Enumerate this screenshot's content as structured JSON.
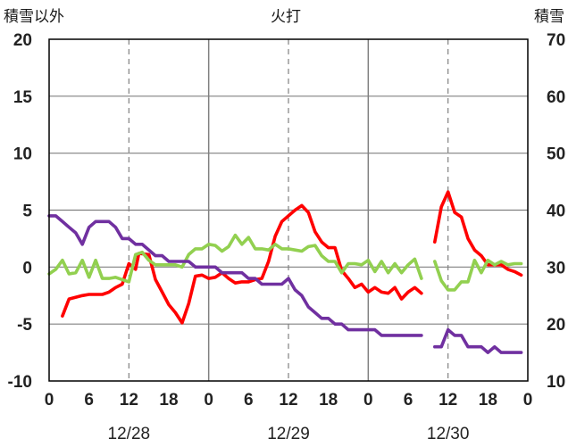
{
  "chart_data": {
    "type": "line",
    "title": "火打",
    "left_axis": {
      "label": "積雪以外",
      "ylim": [
        -10,
        20
      ],
      "ticks": [
        -10,
        -5,
        0,
        5,
        10,
        15,
        20
      ]
    },
    "right_axis": {
      "label": "積雪",
      "ylim": [
        10,
        70
      ],
      "ticks": [
        10,
        20,
        30,
        40,
        50,
        60,
        70
      ]
    },
    "x_axis": {
      "hour_ticks": [
        "0",
        "6",
        "12",
        "18",
        "0",
        "6",
        "12",
        "18",
        "0",
        "6",
        "12",
        "18",
        "0"
      ],
      "date_labels": [
        "12/28",
        "12/29",
        "12/30"
      ],
      "day_boundaries_hour": [
        0,
        24,
        48,
        72
      ],
      "dashed_noon_hours": [
        12,
        36,
        60
      ]
    },
    "grid": true,
    "colors": {
      "red": "#ff0000",
      "green": "#92d050",
      "purple": "#7030a0",
      "axis": "#000000",
      "grid": "#808080"
    },
    "series": [
      {
        "color": "#ff0000",
        "axis": "left",
        "unit": "left",
        "segments": [
          [
            [
              2,
              -4.3
            ],
            [
              3,
              -2.8
            ],
            [
              5,
              -2.5
            ],
            [
              6,
              -2.4
            ],
            [
              8,
              -2.4
            ],
            [
              9,
              -2.2
            ],
            [
              10,
              -1.8
            ],
            [
              11,
              -1.5
            ],
            [
              12,
              0.3
            ],
            [
              13,
              -0.2
            ],
            [
              13.5,
              1.2
            ],
            [
              15,
              1.1
            ],
            [
              16,
              -1.1
            ],
            [
              17,
              -2.2
            ],
            [
              18,
              -3.3
            ],
            [
              19,
              -4.0
            ],
            [
              20,
              -4.9
            ],
            [
              21,
              -3.2
            ],
            [
              22,
              -0.8
            ],
            [
              23,
              -0.7
            ],
            [
              24,
              -1.0
            ],
            [
              25,
              -0.9
            ],
            [
              26,
              -0.5
            ],
            [
              27,
              -1.0
            ],
            [
              28,
              -1.4
            ],
            [
              29,
              -1.3
            ],
            [
              30,
              -1.3
            ],
            [
              31,
              -1.1
            ],
            [
              32,
              -1.0
            ],
            [
              33,
              0.5
            ],
            [
              34,
              2.7
            ],
            [
              35,
              4.0
            ],
            [
              36,
              4.5
            ],
            [
              37,
              5.0
            ],
            [
              38,
              5.4
            ],
            [
              39,
              4.8
            ],
            [
              40,
              3.1
            ],
            [
              41,
              2.2
            ],
            [
              42,
              1.7
            ],
            [
              43,
              1.7
            ],
            [
              44,
              -0.3
            ],
            [
              45,
              -1.0
            ],
            [
              46,
              -1.8
            ],
            [
              47,
              -1.5
            ],
            [
              48,
              -2.2
            ],
            [
              49,
              -1.8
            ],
            [
              50,
              -2.2
            ],
            [
              51,
              -2.3
            ],
            [
              52,
              -1.8
            ],
            [
              53,
              -2.8
            ],
            [
              54,
              -2.2
            ],
            [
              55,
              -1.8
            ],
            [
              56,
              -2.3
            ]
          ],
          [
            [
              58,
              2.2
            ],
            [
              59,
              5.3
            ],
            [
              60,
              6.6
            ],
            [
              61,
              4.8
            ],
            [
              62,
              4.4
            ],
            [
              63,
              2.5
            ],
            [
              64,
              1.5
            ],
            [
              65,
              1.0
            ],
            [
              66,
              0.2
            ],
            [
              67,
              0.2
            ],
            [
              68,
              0.2
            ],
            [
              69,
              -0.2
            ],
            [
              70,
              -0.4
            ],
            [
              71,
              -0.7
            ]
          ]
        ]
      },
      {
        "color": "#92d050",
        "axis": "left",
        "unit": "left",
        "segments": [
          [
            [
              0,
              -0.6
            ],
            [
              1,
              -0.2
            ],
            [
              2,
              0.6
            ],
            [
              3,
              -0.6
            ],
            [
              4,
              -0.5
            ],
            [
              5,
              0.6
            ],
            [
              6,
              -0.9
            ],
            [
              7,
              0.6
            ],
            [
              8,
              -1.0
            ],
            [
              9,
              -1.0
            ],
            [
              10,
              -0.9
            ],
            [
              11,
              -1.1
            ],
            [
              12,
              -1.3
            ],
            [
              13,
              1.1
            ],
            [
              14,
              1.3
            ],
            [
              15,
              0.6
            ],
            [
              16,
              0.2
            ],
            [
              17,
              0.2
            ],
            [
              18,
              0.2
            ],
            [
              19,
              0.2
            ],
            [
              20,
              0.0
            ],
            [
              21,
              1.1
            ],
            [
              22,
              1.6
            ],
            [
              23,
              1.6
            ],
            [
              24,
              2.0
            ],
            [
              25,
              1.9
            ],
            [
              26,
              1.4
            ],
            [
              27,
              1.8
            ],
            [
              28,
              2.8
            ],
            [
              29,
              2.0
            ],
            [
              30,
              2.6
            ],
            [
              31,
              1.6
            ],
            [
              32,
              1.6
            ],
            [
              33,
              1.5
            ],
            [
              34,
              2.0
            ],
            [
              35,
              1.6
            ],
            [
              36,
              1.6
            ],
            [
              37,
              1.5
            ],
            [
              38,
              1.4
            ],
            [
              39,
              1.8
            ],
            [
              40,
              1.9
            ],
            [
              41,
              1.0
            ],
            [
              42,
              0.5
            ],
            [
              43,
              0.5
            ],
            [
              44,
              -0.5
            ],
            [
              45,
              0.3
            ],
            [
              46,
              0.3
            ],
            [
              47,
              0.2
            ],
            [
              48,
              0.6
            ],
            [
              49,
              -0.4
            ],
            [
              50,
              0.5
            ],
            [
              51,
              -0.5
            ],
            [
              52,
              0.3
            ],
            [
              53,
              -0.5
            ],
            [
              54,
              0.2
            ],
            [
              55,
              0.7
            ],
            [
              56,
              -1.0
            ]
          ],
          [
            [
              58,
              0.5
            ],
            [
              59,
              -1.2
            ],
            [
              60,
              -2.0
            ],
            [
              61,
              -2.0
            ],
            [
              62,
              -1.3
            ],
            [
              63,
              -1.3
            ],
            [
              64,
              0.6
            ],
            [
              65,
              -0.5
            ],
            [
              66,
              0.6
            ],
            [
              67,
              0.2
            ],
            [
              68,
              0.5
            ],
            [
              69,
              0.2
            ],
            [
              70,
              0.3
            ],
            [
              71,
              0.3
            ]
          ]
        ]
      },
      {
        "color": "#7030a0",
        "axis": "right",
        "unit": "right",
        "segments": [
          [
            [
              0,
              39
            ],
            [
              1,
              39
            ],
            [
              2,
              38
            ],
            [
              3,
              37
            ],
            [
              4,
              36
            ],
            [
              5,
              34
            ],
            [
              6,
              37
            ],
            [
              7,
              38
            ],
            [
              8,
              38
            ],
            [
              9,
              38
            ],
            [
              10,
              37
            ],
            [
              11,
              35
            ],
            [
              12,
              35
            ],
            [
              13,
              34
            ],
            [
              14,
              34
            ],
            [
              15,
              33
            ],
            [
              16,
              32
            ],
            [
              17,
              32
            ],
            [
              18,
              31
            ],
            [
              19,
              31
            ],
            [
              20,
              31
            ],
            [
              21,
              31
            ],
            [
              22,
              30
            ],
            [
              23,
              30
            ],
            [
              24,
              30
            ],
            [
              25,
              30
            ],
            [
              26,
              29
            ],
            [
              27,
              29
            ],
            [
              28,
              29
            ],
            [
              29,
              29
            ],
            [
              30,
              28
            ],
            [
              31,
              28
            ],
            [
              32,
              27
            ],
            [
              33,
              27
            ],
            [
              34,
              27
            ],
            [
              35,
              27
            ],
            [
              36,
              28
            ],
            [
              37,
              26
            ],
            [
              38,
              25
            ],
            [
              39,
              23
            ],
            [
              40,
              22
            ],
            [
              41,
              21
            ],
            [
              42,
              21
            ],
            [
              43,
              20
            ],
            [
              44,
              20
            ],
            [
              45,
              19
            ],
            [
              46,
              19
            ],
            [
              47,
              19
            ],
            [
              48,
              19
            ],
            [
              49,
              19
            ],
            [
              50,
              18
            ],
            [
              51,
              18
            ],
            [
              52,
              18
            ],
            [
              53,
              18
            ],
            [
              54,
              18
            ],
            [
              55,
              18
            ],
            [
              56,
              18
            ]
          ],
          [
            [
              58,
              16
            ],
            [
              59,
              16
            ],
            [
              60,
              19
            ],
            [
              61,
              18
            ],
            [
              62,
              18
            ],
            [
              63,
              16
            ],
            [
              64,
              16
            ],
            [
              65,
              16
            ],
            [
              66,
              15
            ],
            [
              67,
              16
            ],
            [
              68,
              15
            ],
            [
              69,
              15
            ],
            [
              70,
              15
            ],
            [
              71,
              15
            ]
          ]
        ]
      }
    ]
  }
}
